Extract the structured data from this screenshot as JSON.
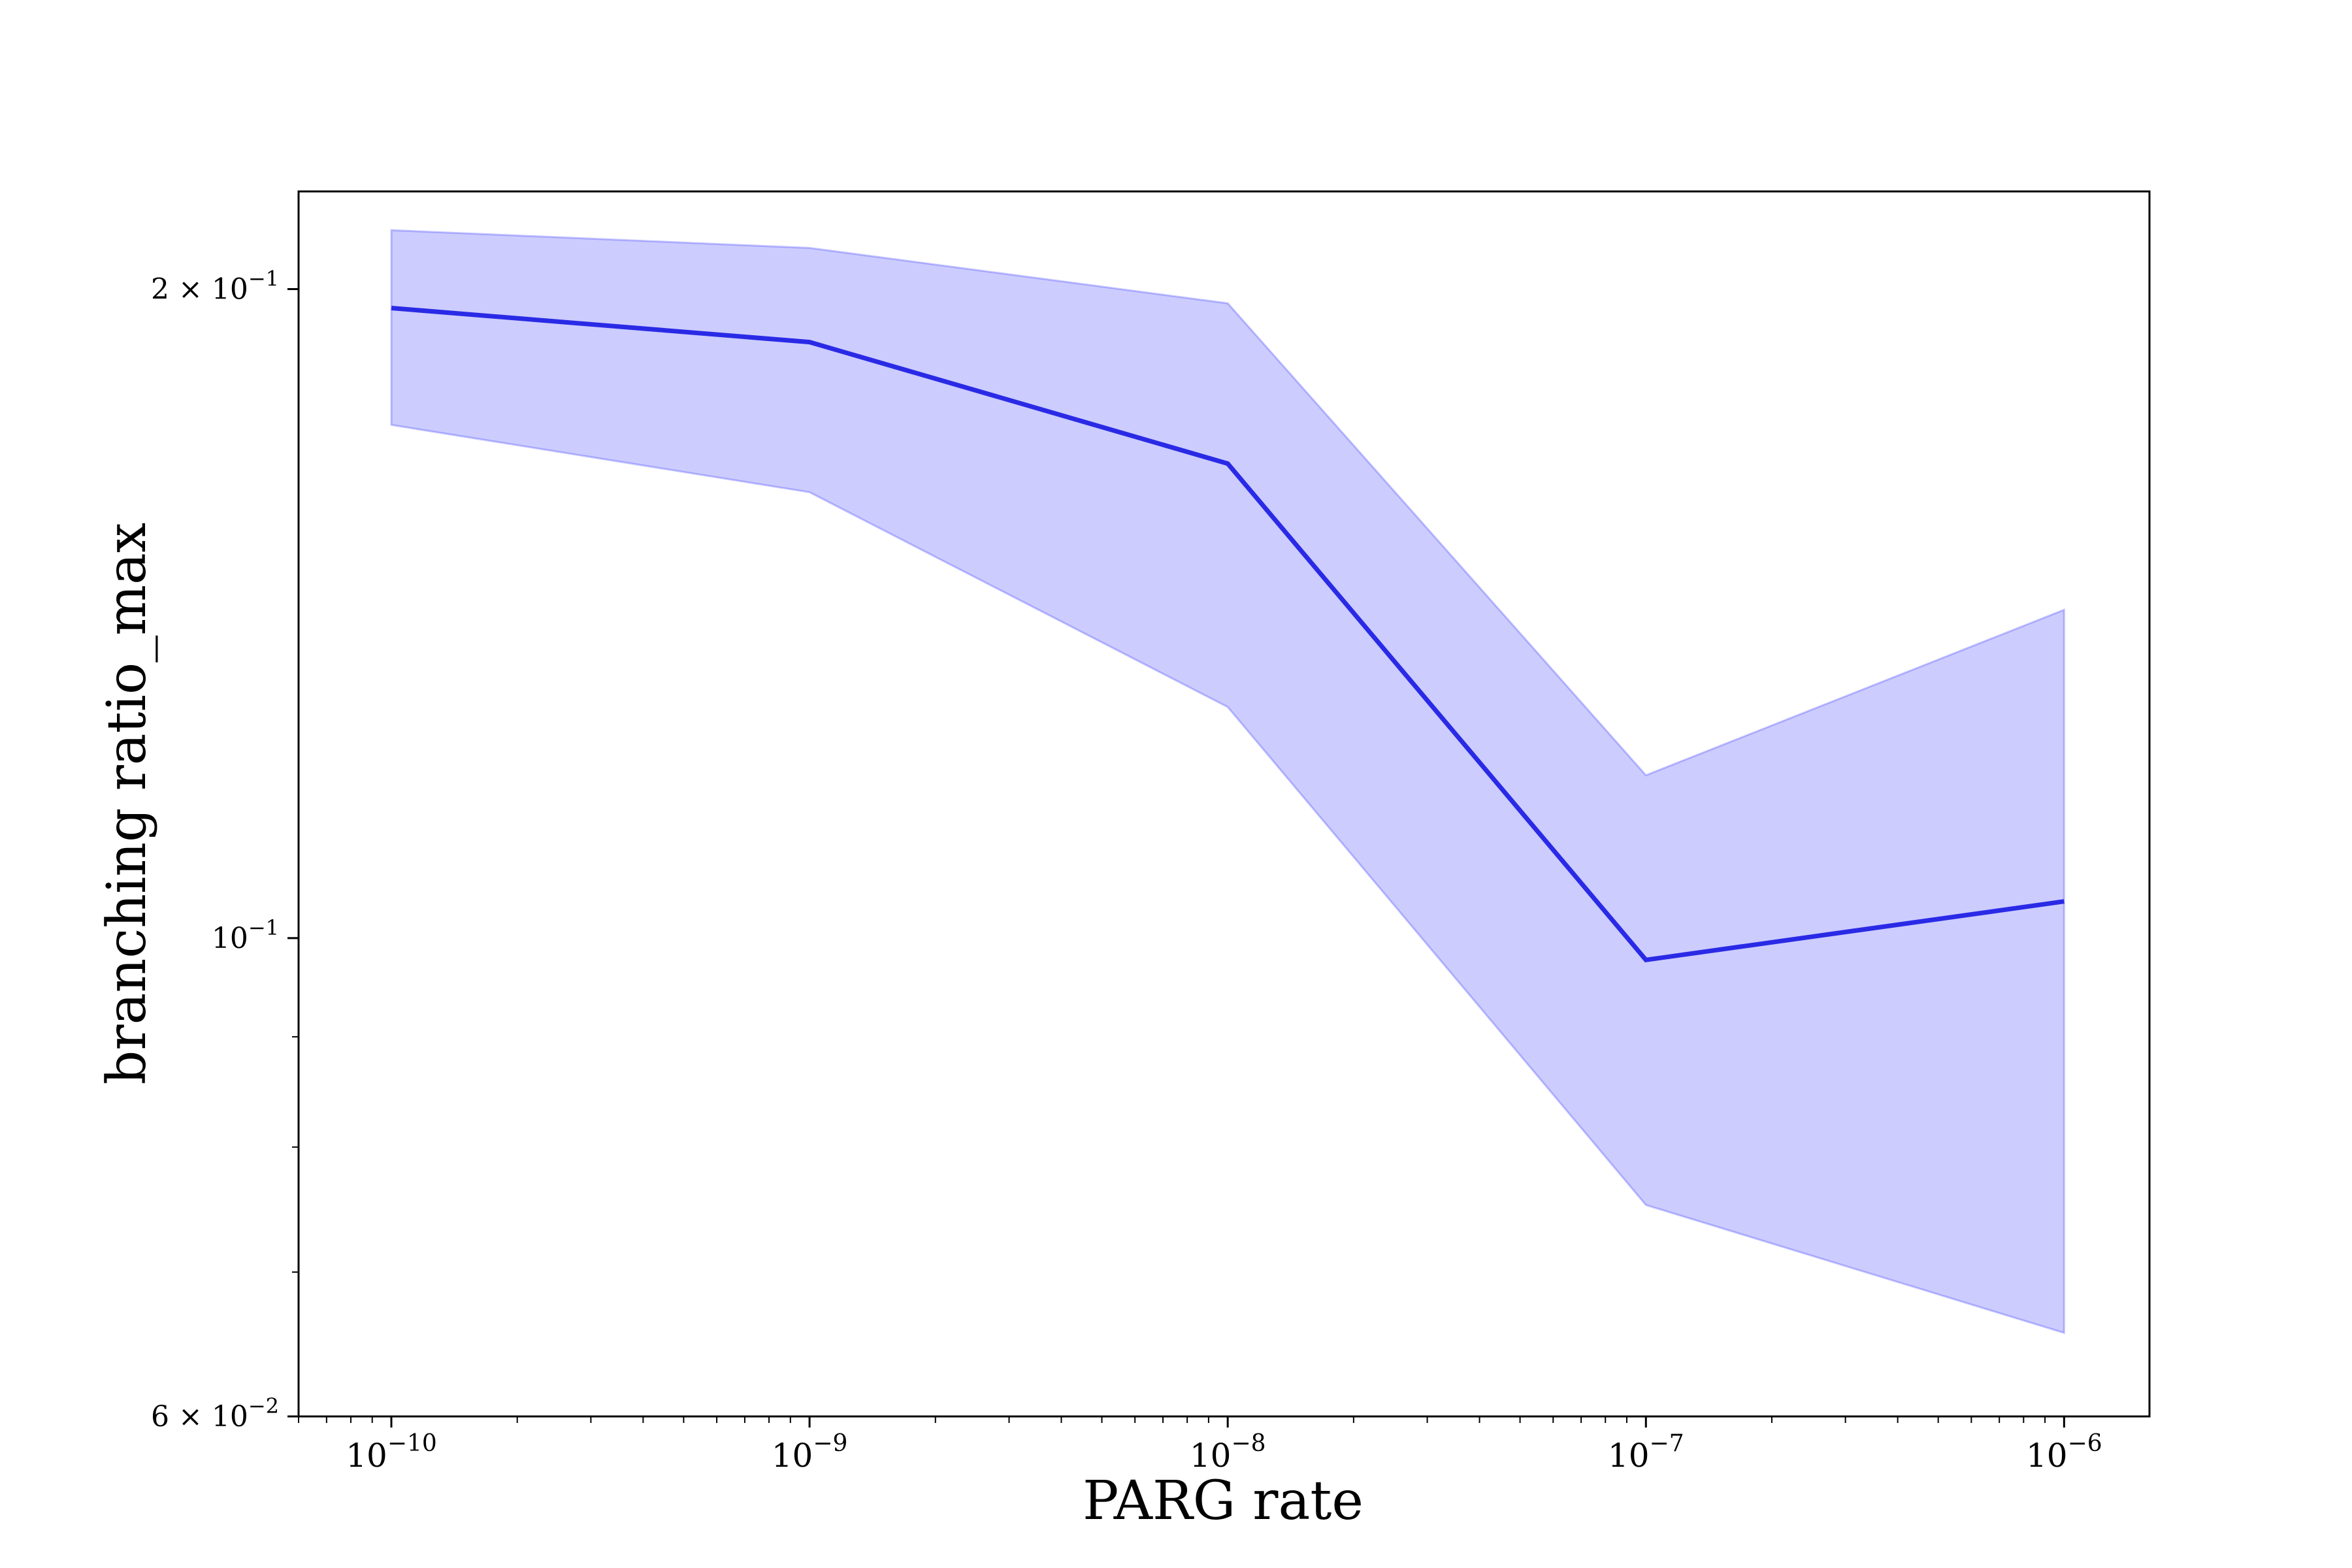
{
  "chart_data": {
    "type": "line",
    "title": "",
    "xlabel": "PARG rate",
    "ylabel": "branching ratio_max",
    "x_scale": "log",
    "y_scale": "log",
    "xlim": [
      6e-11,
      1.6e-06
    ],
    "ylim": [
      0.06,
      0.222
    ],
    "grid": false,
    "x": [
      1e-10,
      1e-09,
      1e-08,
      1e-07,
      1e-06
    ],
    "series": [
      {
        "values": [
          0.196,
          0.189,
          0.166,
          0.0977,
          0.104
        ],
        "lower": [
          0.173,
          0.161,
          0.128,
          0.0752,
          0.0656
        ],
        "upper": [
          0.213,
          0.209,
          0.197,
          0.119,
          0.142
        ],
        "color": "#2a2ae6",
        "band_color": "#0000ff"
      }
    ],
    "x_ticks": [
      {
        "value": 1e-10,
        "base": "10",
        "exp": "−10"
      },
      {
        "value": 1e-09,
        "base": "10",
        "exp": "−9"
      },
      {
        "value": 1e-08,
        "base": "10",
        "exp": "−8"
      },
      {
        "value": 1e-07,
        "base": "10",
        "exp": "−7"
      },
      {
        "value": 1e-06,
        "base": "10",
        "exp": "−6"
      }
    ],
    "y_ticks": [
      {
        "value": 0.2,
        "mant": "2 × ",
        "base": "10",
        "exp": "−1"
      },
      {
        "value": 0.1,
        "mant": "",
        "base": "10",
        "exp": "−1"
      },
      {
        "value": 0.06,
        "mant": "6 × ",
        "base": "10",
        "exp": "−2"
      }
    ]
  }
}
